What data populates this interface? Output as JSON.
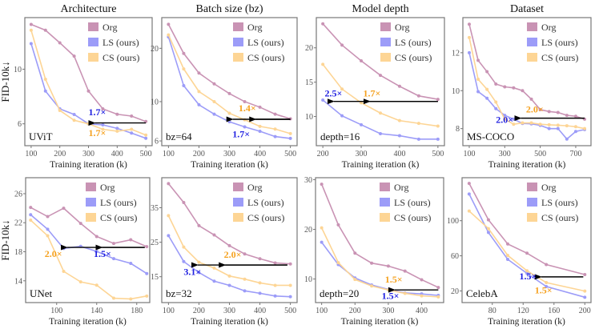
{
  "colors": {
    "Org": "#c993b4",
    "LS": "#9c9cf8",
    "CS": "#fdd595",
    "ann_blue": "#1f1fe0",
    "ann_orange": "#f5a11f",
    "arrow": "#000000"
  },
  "legend": [
    "Org",
    "LS (ours)",
    "CS (ours)"
  ],
  "chart_data": [
    {
      "type": "line",
      "title": "Architecture",
      "ylabel": "FID-10k↓",
      "xlabel": "Training iteration (k)",
      "label": "UViT",
      "yscale": "log",
      "xlim": [
        78,
        522
      ],
      "ylim": [
        4.89,
        16.2
      ],
      "xticks": [
        100,
        200,
        300,
        400,
        500
      ],
      "yticks": [
        6,
        10
      ],
      "x": [
        100,
        150,
        200,
        250,
        300,
        350,
        400,
        450,
        500
      ],
      "series": [
        {
          "name": "Org",
          "values": [
            15.2,
            14.4,
            12.8,
            11.3,
            8.15,
            6.9,
            6.56,
            6.45,
            6.13
          ]
        },
        {
          "name": "LS (ours)",
          "values": [
            12.7,
            8.15,
            6.9,
            6.55,
            6.0,
            5.94,
            5.75,
            5.5,
            5.24
          ]
        },
        {
          "name": "CS (ours)",
          "values": [
            14.4,
            9.1,
            6.8,
            6.2,
            6.0,
            5.7,
            5.6,
            5.7,
            5.4
          ]
        }
      ],
      "arrows": [
        {
          "from": [
            500,
            6.05
          ],
          "to": [
            300,
            6.05
          ]
        }
      ],
      "annotations": [
        {
          "text": "1.7×",
          "color": "blue",
          "at": [
            300,
            6.5
          ]
        },
        {
          "text": "1.7×",
          "color": "orange",
          "at": [
            300,
            5.35
          ]
        }
      ]
    },
    {
      "type": "line",
      "title": "Batch size (bz)",
      "ylabel": "",
      "xlabel": "Training iteration (k)",
      "label": "bz=64",
      "yscale": "log",
      "xlim": [
        78,
        522
      ],
      "ylim": [
        5.64,
        29.8
      ],
      "xticks": [
        100,
        200,
        300,
        400,
        500
      ],
      "yticks": [
        6,
        10,
        20
      ],
      "x": [
        100,
        150,
        200,
        250,
        300,
        350,
        400,
        450,
        500
      ],
      "series": [
        {
          "name": "Org",
          "values": [
            27.3,
            18.7,
            14.5,
            12.6,
            11.1,
            10.0,
            9.3,
            8.5,
            8.0
          ]
        },
        {
          "name": "LS (ours)",
          "values": [
            23.2,
            12.3,
            9.6,
            8.5,
            7.7,
            7.2,
            6.8,
            6.35,
            6.2
          ]
        },
        {
          "name": "CS (ours)",
          "values": [
            23.8,
            15.3,
            11.4,
            10.0,
            8.6,
            7.9,
            7.25,
            7.0,
            6.6
          ]
        }
      ],
      "arrows": [
        {
          "from": [
            500,
            7.95
          ],
          "to": [
            290,
            7.95
          ]
        },
        {
          "from": [
            500,
            7.95
          ],
          "to": [
            365,
            7.95
          ]
        }
      ],
      "annotations": [
        {
          "text": "1.4×",
          "color": "orange",
          "at": [
            330,
            8.8
          ]
        },
        {
          "text": "1.7×",
          "color": "blue",
          "at": [
            310,
            6.3
          ]
        }
      ]
    },
    {
      "type": "line",
      "title": "Model depth",
      "ylabel": "",
      "xlabel": "Training iteration (k)",
      "label": "depth=16",
      "yscale": "linear",
      "xlim": [
        183,
        517
      ],
      "ylim": [
        5.75,
        24.4
      ],
      "xticks": [
        200,
        300,
        400,
        500
      ],
      "yticks": [
        10,
        15,
        20
      ],
      "x": [
        200,
        250,
        300,
        350,
        400,
        450,
        500
      ],
      "series": [
        {
          "name": "Org",
          "values": [
            23.5,
            20.4,
            18.1,
            16.0,
            14.4,
            13.0,
            12.5
          ]
        },
        {
          "name": "LS (ours)",
          "values": [
            12.4,
            10.1,
            8.8,
            7.5,
            7.2,
            6.7,
            6.7
          ]
        },
        {
          "name": "CS (ours)",
          "values": [
            17.6,
            14.0,
            12.0,
            10.5,
            9.4,
            9.0,
            8.6
          ]
        }
      ],
      "arrows": [
        {
          "from": [
            500,
            12.2
          ],
          "to": [
            212,
            12.2
          ]
        },
        {
          "from": [
            500,
            12.2
          ],
          "to": [
            306,
            12.2
          ]
        }
      ],
      "annotations": [
        {
          "text": "2.5×",
          "color": "blue",
          "at": [
            205,
            12.9
          ]
        },
        {
          "text": "1.7×",
          "color": "orange",
          "at": [
            305,
            12.9
          ]
        }
      ]
    },
    {
      "type": "line",
      "title": "Dataset",
      "ylabel": "",
      "xlabel": "Training iteration (k)",
      "label": "MS-COCO",
      "yscale": "linear",
      "xlim": [
        64,
        786
      ],
      "ylim": [
        7.1,
        13.85
      ],
      "xticks": [
        100,
        300,
        500,
        700
      ],
      "yticks": [
        8,
        10,
        12
      ],
      "x": [
        100,
        150,
        200,
        250,
        300,
        350,
        400,
        450,
        500,
        550,
        600,
        650,
        700,
        750
      ],
      "series": [
        {
          "name": "Org",
          "values": [
            13.5,
            11.6,
            11.0,
            10.35,
            10.2,
            10.15,
            10.0,
            9.55,
            9.0,
            8.9,
            8.85,
            8.7,
            8.65,
            8.5
          ]
        },
        {
          "name": "LS (ours)",
          "values": [
            12.0,
            9.95,
            9.6,
            9.05,
            8.7,
            8.5,
            8.27,
            8.25,
            8.17,
            8.0,
            8.0,
            7.45,
            7.85,
            7.95
          ]
        },
        {
          "name": "CS (ours)",
          "values": [
            12.8,
            10.6,
            10.07,
            9.4,
            8.5,
            8.23,
            8.3,
            8.3,
            8.23,
            8.2,
            8.18,
            8.15,
            8.1,
            8.0
          ]
        }
      ],
      "arrows": [
        {
          "from": [
            750,
            8.55
          ],
          "to": [
            355,
            8.55
          ]
        }
      ],
      "annotations": [
        {
          "text": "2.0×",
          "color": "orange",
          "at": [
            420,
            8.85
          ]
        },
        {
          "text": "2.0×",
          "color": "blue",
          "at": [
            250,
            8.3
          ]
        }
      ]
    },
    {
      "type": "line",
      "title": "",
      "ylabel": "FID-10k↓",
      "xlabel": "Training iteration (k)",
      "label": "UNet",
      "yscale": "linear",
      "xlim": [
        69,
        193
      ],
      "ylim": [
        11.0,
        28.2
      ],
      "xticks": [
        100,
        140,
        180
      ],
      "yticks": [
        14,
        18,
        22,
        26
      ],
      "x": [
        74,
        91,
        107,
        124,
        140,
        157,
        174,
        190
      ],
      "series": [
        {
          "name": "Org",
          "values": [
            24.1,
            22.85,
            24.0,
            21.9,
            20.1,
            19.15,
            19.65,
            18.7
          ]
        },
        {
          "name": "LS (ours)",
          "values": [
            23.1,
            21.1,
            18.45,
            18.75,
            18.05,
            17.05,
            16.4,
            15.0
          ]
        },
        {
          "name": "CS (ours)",
          "values": [
            22.35,
            20.2,
            15.3,
            13.85,
            13.4,
            11.6,
            11.5,
            11.9
          ]
        }
      ],
      "arrows": [
        {
          "from": [
            188,
            18.6
          ],
          "to": [
            104,
            18.6
          ]
        },
        {
          "from": [
            188,
            18.6
          ],
          "to": [
            139,
            18.6
          ]
        }
      ],
      "annotations": [
        {
          "text": "2.0×",
          "color": "orange",
          "at": [
            88,
            17.3
          ]
        },
        {
          "text": "1.5×",
          "color": "blue",
          "at": [
            137,
            17.3
          ]
        }
      ]
    },
    {
      "type": "line",
      "title": "",
      "ylabel": "",
      "xlabel": "Training iteration (k)",
      "label": "bz=32",
      "yscale": "linear",
      "xlim": [
        78,
        522
      ],
      "ylim": [
        7.5,
        43.7
      ],
      "xticks": [
        100,
        200,
        300,
        400,
        500
      ],
      "yticks": [
        15,
        25,
        35
      ],
      "x": [
        100,
        150,
        200,
        250,
        300,
        350,
        400,
        450,
        500
      ],
      "series": [
        {
          "name": "Org",
          "values": [
            42.0,
            36.5,
            29.8,
            27.1,
            24.0,
            21.6,
            20.2,
            19.0,
            18.7
          ]
        },
        {
          "name": "LS (ours)",
          "values": [
            26.9,
            19.4,
            16.2,
            13.7,
            12.5,
            10.9,
            10.2,
            9.4,
            9.2
          ]
        },
        {
          "name": "CS (ours)",
          "values": [
            32.7,
            23.6,
            19.2,
            17.5,
            15.2,
            14.3,
            13.2,
            12.5,
            12.5
          ]
        }
      ],
      "arrows": [
        {
          "from": [
            490,
            18.4
          ],
          "to": [
            175,
            18.4
          ]
        },
        {
          "from": [
            490,
            18.4
          ],
          "to": [
            265,
            18.4
          ]
        }
      ],
      "annotations": [
        {
          "text": "2.0×",
          "color": "orange",
          "at": [
            282,
            20.5
          ]
        },
        {
          "text": "3.1×",
          "color": "blue",
          "at": [
            150,
            15.5
          ]
        }
      ]
    },
    {
      "type": "line",
      "title": "",
      "ylabel": "",
      "xlabel": "Training iteration (k)",
      "label": "depth=20",
      "yscale": "linear",
      "xlim": [
        81.6,
        466
      ],
      "ylim": [
        5.25,
        30.4
      ],
      "xticks": [
        100,
        200,
        300,
        400
      ],
      "yticks": [
        10,
        20,
        30
      ],
      "x": [
        100,
        150,
        200,
        250,
        300,
        350,
        400,
        450
      ],
      "series": [
        {
          "name": "Org",
          "values": [
            29.1,
            20.9,
            15.2,
            13.2,
            12.6,
            11.6,
            9.85,
            8.3
          ]
        },
        {
          "name": "LS (ours)",
          "values": [
            17.4,
            12.9,
            10.2,
            8.8,
            7.9,
            7.2,
            7.0,
            6.7
          ]
        },
        {
          "name": "CS (ours)",
          "values": [
            20.3,
            13.3,
            9.9,
            8.6,
            7.8,
            7.1,
            6.6,
            6.4
          ]
        }
      ],
      "arrows": [
        {
          "from": [
            450,
            7.8
          ],
          "to": [
            300,
            7.8
          ]
        }
      ],
      "annotations": [
        {
          "text": "1.5×",
          "color": "orange",
          "at": [
            290,
            9.3
          ]
        },
        {
          "text": "1.5×",
          "color": "blue",
          "at": [
            280,
            6.0
          ]
        }
      ]
    },
    {
      "type": "line",
      "title": "",
      "ylabel": "",
      "xlabel": "Training iteration (k)",
      "label": "CelebA",
      "yscale": "linear",
      "xlim": [
        40.8,
        208
      ],
      "ylim": [
        6.7,
        149
      ],
      "xticks": [
        80,
        120,
        160,
        200
      ],
      "yticks": [
        20,
        60,
        100
      ],
      "x": [
        50,
        75,
        100,
        125,
        150,
        200
      ],
      "series": [
        {
          "name": "Org",
          "values": [
            142.5,
            101,
            73.5,
            63,
            50,
            38.6
          ]
        },
        {
          "name": "LS (ours)",
          "values": [
            130.4,
            86.6,
            56,
            40,
            25,
            12.8
          ]
        },
        {
          "name": "CS (ours)",
          "values": [
            111,
            91,
            60.5,
            43,
            29.5,
            19.8
          ]
        }
      ],
      "arrows": [
        {
          "from": [
            198,
            36
          ],
          "to": [
            135,
            36
          ]
        }
      ],
      "annotations": [
        {
          "text": "1.5×",
          "color": "blue",
          "at": [
            115,
            33
          ]
        },
        {
          "text": "1.5×",
          "color": "orange",
          "at": [
            135,
            17
          ]
        }
      ]
    }
  ]
}
